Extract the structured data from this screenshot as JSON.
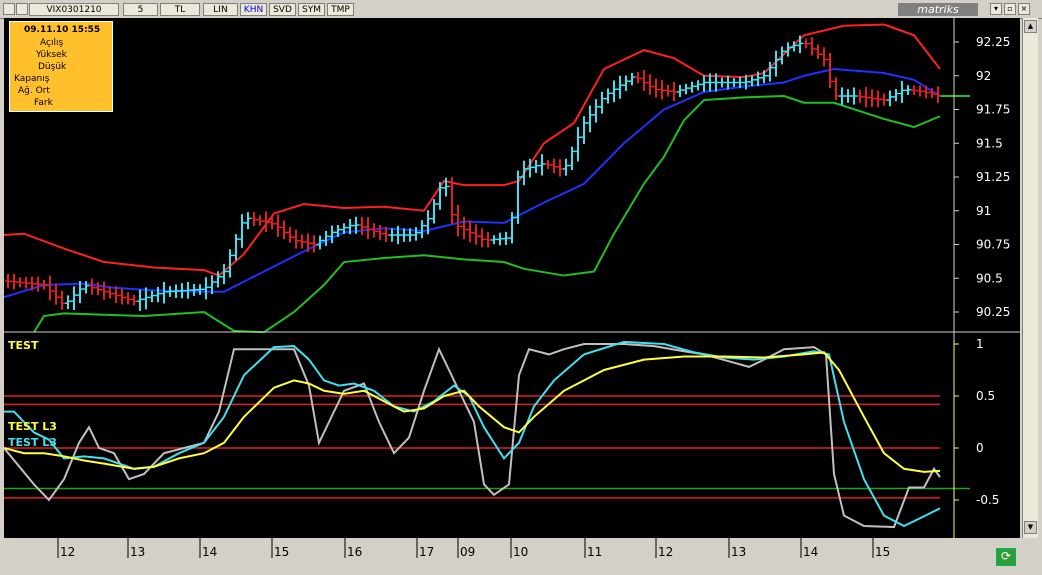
{
  "toolbar": {
    "symbol": "VIX0301210",
    "period": "5",
    "currency": "TL",
    "scale": "LIN",
    "buttons": [
      "KHN",
      "SVD",
      "SYM",
      "TMP"
    ],
    "brand": "matriks"
  },
  "info": {
    "datetime": "09.11.10 15:55",
    "labels": [
      "Açılış",
      "Yüksek",
      "Düşük",
      "Kapanış",
      "Ağ. Ort",
      "Fark"
    ]
  },
  "price_axis": [
    "92.25",
    "92",
    "91.75",
    "91.5",
    "91.25",
    "91",
    "90.75",
    "90.5",
    "90.25"
  ],
  "osc_axis": [
    "1",
    "0.5",
    "0",
    "-0.5"
  ],
  "indicators": {
    "test": "TEST",
    "test_l3_yellow": "TEST L3",
    "test_l3_cyan": "TEST L3"
  },
  "time_axis": [
    "12",
    "13",
    "14",
    "15",
    "16",
    "17",
    "09",
    "10",
    "11",
    "12",
    "13",
    "14",
    "15"
  ],
  "colors": {
    "upper_band": "#ff2020",
    "mid_band": "#2030ff",
    "lower_band": "#20c020",
    "up_bar": "#40e0f0",
    "down_bar": "#e02020",
    "osc_white": "#c0c0c0",
    "osc_cyan": "#40e0f0",
    "osc_yellow": "#ffff40",
    "level_line": "#e02020",
    "signal_line": "#20a020",
    "info_bg": "#ffc02c"
  }
}
